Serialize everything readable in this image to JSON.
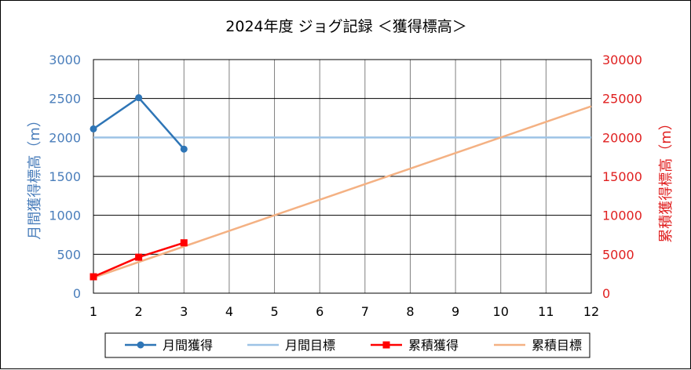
{
  "chart_data": {
    "type": "line",
    "title": "2024年度 ジョグ記録 ＜獲得標高＞",
    "x": [
      1,
      2,
      3,
      4,
      5,
      6,
      7,
      8,
      9,
      10,
      11,
      12
    ],
    "xlim": [
      1,
      12
    ],
    "ylabel_left": "月間獲得標高（m）",
    "ylabel_right": "累積獲得標高（m）",
    "ylim_left": [
      0,
      3000
    ],
    "ylim_right": [
      0,
      30000
    ],
    "yticks_left": [
      0,
      500,
      1000,
      1500,
      2000,
      2500,
      3000
    ],
    "yticks_right": [
      0,
      5000,
      10000,
      15000,
      20000,
      25000,
      30000
    ],
    "grid": true,
    "legend_position": "bottom",
    "series": [
      {
        "name": "月間獲得",
        "axis": "left",
        "color": "#2E75B6",
        "marker": "circle",
        "x": [
          1,
          2,
          3
        ],
        "values": [
          2110,
          2510,
          1850
        ]
      },
      {
        "name": "月間目標",
        "axis": "left",
        "color": "#9DC3E6",
        "marker": "none",
        "x": [
          1,
          12
        ],
        "values": [
          2000,
          2000
        ]
      },
      {
        "name": "累積獲得",
        "axis": "right",
        "color": "#FF0000",
        "marker": "square",
        "x": [
          1,
          2,
          3
        ],
        "values": [
          2110,
          4620,
          6470
        ]
      },
      {
        "name": "累積目標",
        "axis": "right",
        "color": "#F4B183",
        "marker": "none",
        "x": [
          1,
          12
        ],
        "values": [
          2000,
          24000
        ]
      }
    ],
    "colors": {
      "left_axis": "#4A7EBB",
      "right_axis": "#E02020",
      "grid": "#808080"
    }
  }
}
